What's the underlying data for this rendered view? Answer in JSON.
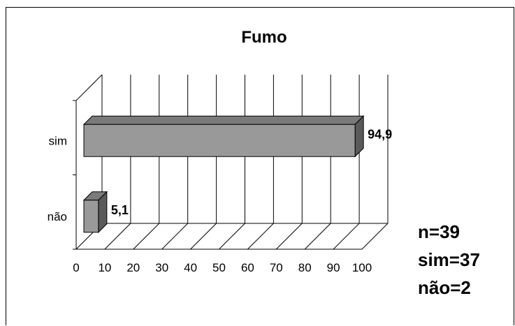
{
  "chart_data": {
    "type": "bar",
    "orientation": "horizontal",
    "title": "Fumo",
    "categories": [
      "sim",
      "não"
    ],
    "values": [
      94.9,
      5.1
    ],
    "value_labels": [
      "94,9",
      "5,1"
    ],
    "xlim": [
      0,
      100
    ],
    "xticks": [
      "0",
      "10",
      "20",
      "30",
      "40",
      "50",
      "60",
      "70",
      "80",
      "90",
      "100"
    ],
    "xlabel": "",
    "ylabel": "",
    "grid": true,
    "style": "3d",
    "colors": {
      "bar_front": "#999999",
      "bar_top": "#7a7a7a",
      "bar_side": "#5a5a5a",
      "grid": "#000000"
    }
  },
  "notes": [
    "n=39",
    "sim=37",
    "não=2"
  ]
}
